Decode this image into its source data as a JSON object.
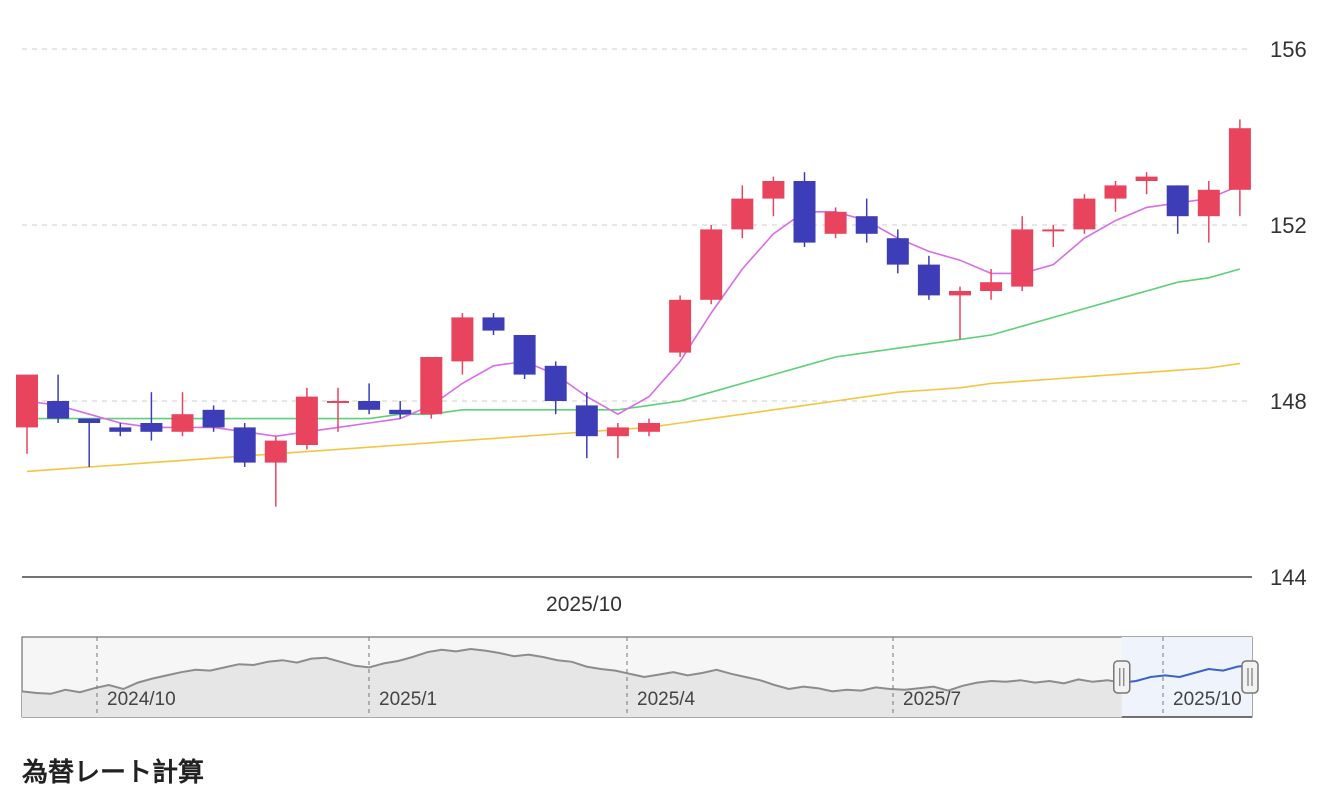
{
  "chart_data": {
    "type": "candlestick",
    "y_axis": {
      "ticks": [
        144,
        148,
        152,
        156
      ],
      "range": [
        144,
        156.6
      ],
      "position": "right"
    },
    "x_axis_label": "2025/10",
    "colors": {
      "up": "#e8445e",
      "down": "#3d3db8",
      "ma_short": "#d96ce8",
      "ma_mid": "#5fd07a",
      "ma_long": "#f5c542",
      "grid": "#cfcfcf",
      "navigator_line": "#8c8c8c",
      "navigator_selected_line": "#3a62c8",
      "navigator_selected_fill": "#eef3fc",
      "navigator_fill": "#e6e6e6"
    },
    "candles": [
      {
        "o": 147.4,
        "h": 148.6,
        "l": 146.8,
        "c": 148.6
      },
      {
        "o": 148.0,
        "h": 148.6,
        "l": 147.5,
        "c": 147.6
      },
      {
        "o": 147.6,
        "h": 147.6,
        "l": 146.5,
        "c": 147.5
      },
      {
        "o": 147.4,
        "h": 147.5,
        "l": 147.2,
        "c": 147.3
      },
      {
        "o": 147.5,
        "h": 148.2,
        "l": 147.1,
        "c": 147.3
      },
      {
        "o": 147.3,
        "h": 148.2,
        "l": 147.2,
        "c": 147.7
      },
      {
        "o": 147.8,
        "h": 147.9,
        "l": 147.3,
        "c": 147.4
      },
      {
        "o": 147.4,
        "h": 147.5,
        "l": 146.5,
        "c": 146.6
      },
      {
        "o": 146.6,
        "h": 147.2,
        "l": 145.6,
        "c": 147.1
      },
      {
        "o": 147.0,
        "h": 148.3,
        "l": 146.9,
        "c": 148.1
      },
      {
        "o": 148.0,
        "h": 148.3,
        "l": 147.3,
        "c": 148.0
      },
      {
        "o": 148.0,
        "h": 148.4,
        "l": 147.7,
        "c": 147.8
      },
      {
        "o": 147.8,
        "h": 148.0,
        "l": 147.6,
        "c": 147.7
      },
      {
        "o": 147.7,
        "h": 149.0,
        "l": 147.6,
        "c": 149.0
      },
      {
        "o": 148.9,
        "h": 150.0,
        "l": 148.6,
        "c": 149.9
      },
      {
        "o": 149.9,
        "h": 150.0,
        "l": 149.5,
        "c": 149.6
      },
      {
        "o": 149.5,
        "h": 149.5,
        "l": 148.5,
        "c": 148.6
      },
      {
        "o": 148.8,
        "h": 148.9,
        "l": 147.7,
        "c": 148.0
      },
      {
        "o": 147.9,
        "h": 148.2,
        "l": 146.7,
        "c": 147.2
      },
      {
        "o": 147.2,
        "h": 147.5,
        "l": 146.7,
        "c": 147.4
      },
      {
        "o": 147.3,
        "h": 147.6,
        "l": 147.2,
        "c": 147.5
      },
      {
        "o": 149.1,
        "h": 150.4,
        "l": 149.0,
        "c": 150.3
      },
      {
        "o": 150.3,
        "h": 152.0,
        "l": 150.2,
        "c": 151.9
      },
      {
        "o": 151.9,
        "h": 152.9,
        "l": 151.7,
        "c": 152.6
      },
      {
        "o": 152.6,
        "h": 153.1,
        "l": 152.2,
        "c": 153.0
      },
      {
        "o": 153.0,
        "h": 153.2,
        "l": 151.5,
        "c": 151.6
      },
      {
        "o": 151.8,
        "h": 152.4,
        "l": 151.7,
        "c": 152.3
      },
      {
        "o": 152.2,
        "h": 152.6,
        "l": 151.6,
        "c": 151.8
      },
      {
        "o": 151.7,
        "h": 151.9,
        "l": 150.9,
        "c": 151.1
      },
      {
        "o": 151.1,
        "h": 151.3,
        "l": 150.3,
        "c": 150.4
      },
      {
        "o": 150.4,
        "h": 150.6,
        "l": 149.4,
        "c": 150.5
      },
      {
        "o": 150.5,
        "h": 151.0,
        "l": 150.3,
        "c": 150.7
      },
      {
        "o": 150.6,
        "h": 152.2,
        "l": 150.5,
        "c": 151.9
      },
      {
        "o": 151.9,
        "h": 152.0,
        "l": 151.5,
        "c": 151.9
      },
      {
        "o": 151.9,
        "h": 152.7,
        "l": 151.8,
        "c": 152.6
      },
      {
        "o": 152.6,
        "h": 153.0,
        "l": 152.3,
        "c": 152.9
      },
      {
        "o": 153.0,
        "h": 153.2,
        "l": 152.7,
        "c": 153.1
      },
      {
        "o": 152.9,
        "h": 152.9,
        "l": 151.8,
        "c": 152.2
      },
      {
        "o": 152.2,
        "h": 153.0,
        "l": 151.6,
        "c": 152.8
      },
      {
        "o": 152.8,
        "h": 154.4,
        "l": 152.2,
        "c": 154.2
      }
    ],
    "ma_short": [
      148.0,
      147.9,
      147.7,
      147.5,
      147.4,
      147.4,
      147.4,
      147.3,
      147.2,
      147.3,
      147.4,
      147.5,
      147.6,
      147.9,
      148.4,
      148.8,
      148.9,
      148.6,
      148.1,
      147.7,
      148.1,
      148.9,
      150.0,
      151.0,
      151.8,
      152.3,
      152.3,
      152.1,
      151.7,
      151.4,
      151.2,
      150.9,
      150.9,
      151.1,
      151.7,
      152.1,
      152.4,
      152.5,
      152.6,
      152.9
    ],
    "ma_mid": [
      147.6,
      147.6,
      147.6,
      147.6,
      147.6,
      147.6,
      147.6,
      147.6,
      147.6,
      147.6,
      147.6,
      147.6,
      147.7,
      147.7,
      147.8,
      147.8,
      147.8,
      147.8,
      147.8,
      147.8,
      147.9,
      148.0,
      148.2,
      148.4,
      148.6,
      148.8,
      149.0,
      149.1,
      149.2,
      149.3,
      149.4,
      149.5,
      149.7,
      149.9,
      150.1,
      150.3,
      150.5,
      150.7,
      150.8,
      151.0
    ],
    "ma_long": [
      146.4,
      146.45,
      146.5,
      146.55,
      146.6,
      146.65,
      146.7,
      146.75,
      146.8,
      146.85,
      146.9,
      146.95,
      147.0,
      147.05,
      147.1,
      147.15,
      147.2,
      147.25,
      147.3,
      147.35,
      147.4,
      147.5,
      147.6,
      147.7,
      147.8,
      147.9,
      148.0,
      148.1,
      148.2,
      148.25,
      148.3,
      148.4,
      148.45,
      148.5,
      148.55,
      148.6,
      148.65,
      148.7,
      148.75,
      148.85
    ]
  },
  "navigator": {
    "labels": [
      "2024/10",
      "2025/1",
      "2025/4",
      "2025/7",
      "2025/10"
    ],
    "series": [
      143.2,
      143.0,
      142.9,
      143.4,
      143.1,
      143.6,
      144.0,
      143.5,
      144.3,
      144.8,
      145.2,
      145.6,
      145.9,
      145.8,
      146.2,
      146.6,
      146.5,
      146.9,
      147.1,
      146.8,
      147.3,
      147.4,
      146.9,
      146.4,
      146.2,
      146.7,
      147.0,
      147.5,
      148.1,
      148.4,
      148.2,
      148.5,
      148.3,
      148.0,
      147.6,
      147.8,
      147.5,
      147.1,
      146.9,
      146.3,
      146.0,
      145.8,
      145.4,
      145.0,
      145.3,
      145.6,
      145.2,
      145.5,
      145.9,
      145.4,
      145.0,
      144.6,
      144.0,
      143.5,
      143.8,
      143.6,
      143.2,
      143.4,
      143.3,
      143.7,
      143.5,
      143.4,
      143.6,
      143.8,
      143.3,
      143.9,
      144.3,
      144.5,
      144.4,
      144.6,
      144.3,
      144.5,
      144.2,
      144.7,
      144.4,
      144.6,
      144.3,
      144.5,
      145.0,
      145.2,
      145.0,
      145.5,
      146.0,
      145.8,
      146.3,
      146.5
    ],
    "selected_from_index": 76
  },
  "bottom_text": "為替レート計算"
}
